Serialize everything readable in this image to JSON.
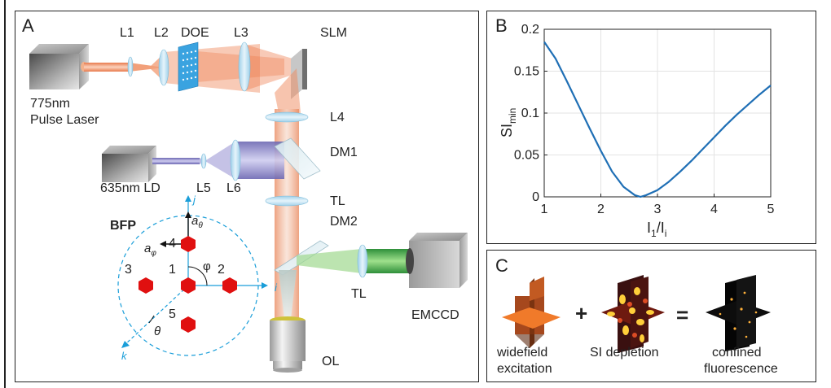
{
  "panel_a": {
    "letter": "A",
    "labels": {
      "L1": "L1",
      "L2": "L2",
      "DOE": "DOE",
      "L3": "L3",
      "SLM": "SLM",
      "laser_line1": "775nm",
      "laser_line2": "Pulse Laser",
      "L4": "L4",
      "DM1": "DM1",
      "LD": "635nm LD",
      "L5": "L5",
      "L6": "L6",
      "TL_upper": "TL",
      "DM2": "DM2",
      "TL_lower": "TL",
      "EMCCD": "EMCCD",
      "OL": "OL"
    },
    "bfp": {
      "title": "BFP",
      "spots": [
        "1",
        "2",
        "3",
        "4",
        "5"
      ],
      "axis_i": "i",
      "axis_j": "j",
      "axis_k": "k",
      "a_theta": "a",
      "a_theta_sub": "θ",
      "a_phi": "a",
      "a_phi_sub": "φ",
      "phi": "φ",
      "theta": "θ"
    },
    "colors": {
      "beam_pulse": "#f08a5d",
      "beam_ld": "#8a86c8",
      "beam_fluor": "#3fae49",
      "spot": "#e01010",
      "bfp_axis": "#1a9ed9"
    }
  },
  "panel_b": {
    "letter": "B",
    "chart_data": {
      "type": "line",
      "xlabel": "I",
      "xlabel_sub1": "1",
      "xlabel_mid": "/I",
      "xlabel_sub2": "i",
      "ylabel": "SI",
      "ylabel_sub": "min",
      "xlim": [
        1,
        5
      ],
      "ylim": [
        0,
        0.2
      ],
      "xticks": [
        "1",
        "2",
        "3",
        "4",
        "5"
      ],
      "yticks": [
        "0",
        "0.05",
        "0.1",
        "0.15",
        "0.2"
      ],
      "grid": true,
      "series": [
        {
          "color": "#1f6fb5",
          "x": [
            1.0,
            1.2,
            1.4,
            1.6,
            1.8,
            2.0,
            2.2,
            2.4,
            2.6,
            2.7,
            2.8,
            3.0,
            3.2,
            3.4,
            3.6,
            3.8,
            4.0,
            4.2,
            4.4,
            4.6,
            4.8,
            5.0
          ],
          "y": [
            0.185,
            0.165,
            0.138,
            0.11,
            0.082,
            0.055,
            0.03,
            0.012,
            0.002,
            0.0,
            0.002,
            0.008,
            0.018,
            0.03,
            0.043,
            0.057,
            0.071,
            0.085,
            0.098,
            0.11,
            0.122,
            0.133
          ]
        }
      ]
    }
  },
  "panel_c": {
    "letter": "C",
    "plus": "+",
    "equals": "=",
    "captions": [
      {
        "line1": "widefield",
        "line2": "excitation"
      },
      {
        "line1": "SI depletion",
        "line2": ""
      },
      {
        "line1": "confined",
        "line2": "fluorescence"
      }
    ]
  }
}
